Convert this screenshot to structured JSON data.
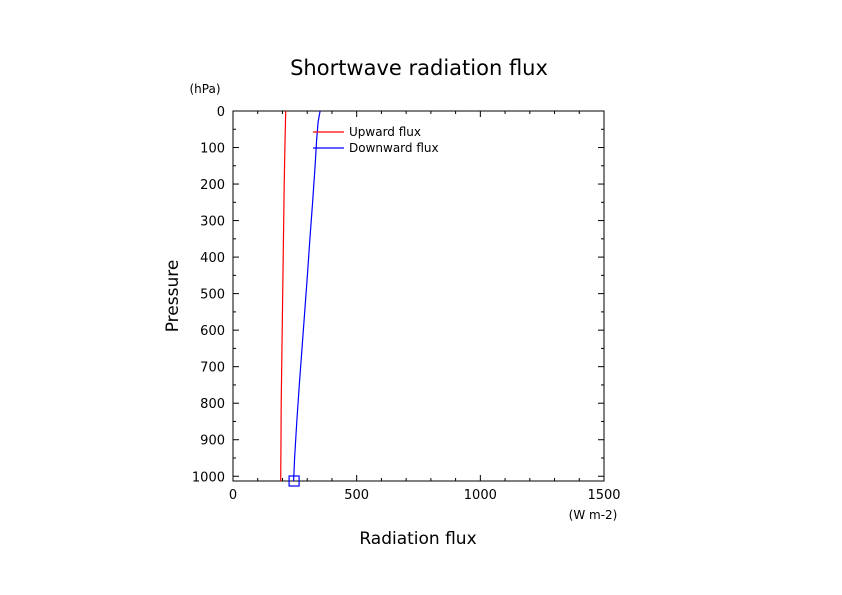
{
  "chart_data": {
    "type": "line",
    "title": "Shortwave radiation flux",
    "xlabel": "Radiation flux",
    "ylabel": "Pressure",
    "x_unit": "(W m-2)",
    "y_unit": "(hPa)",
    "xlim": [
      0,
      1500
    ],
    "ylim": [
      0,
      1013
    ],
    "y_inverted": true,
    "x_ticks": [
      0,
      500,
      1000,
      1500
    ],
    "y_ticks": [
      0,
      100,
      200,
      300,
      400,
      500,
      600,
      700,
      800,
      900,
      1000
    ],
    "legend_position": "top-left",
    "series": [
      {
        "name": "Upward flux",
        "color": "#ff0000",
        "points": [
          [
            213,
            0
          ],
          [
            210,
            100
          ],
          [
            207,
            200
          ],
          [
            205,
            300
          ],
          [
            203,
            400
          ],
          [
            201,
            500
          ],
          [
            199,
            600
          ],
          [
            197,
            700
          ],
          [
            195,
            800
          ],
          [
            194,
            900
          ],
          [
            193,
            1013
          ]
        ]
      },
      {
        "name": "Downward flux",
        "color": "#0000ff",
        "points": [
          [
            352,
            0
          ],
          [
            344,
            30
          ],
          [
            338,
            80
          ],
          [
            332,
            150
          ],
          [
            322,
            250
          ],
          [
            311,
            350
          ],
          [
            301,
            450
          ],
          [
            290,
            550
          ],
          [
            279,
            650
          ],
          [
            268,
            750
          ],
          [
            258,
            850
          ],
          [
            249,
            950
          ],
          [
            245,
            1013
          ]
        ]
      }
    ],
    "marker": {
      "x": 247,
      "y": 1013,
      "shape": "square",
      "color": "#0000ff"
    }
  }
}
